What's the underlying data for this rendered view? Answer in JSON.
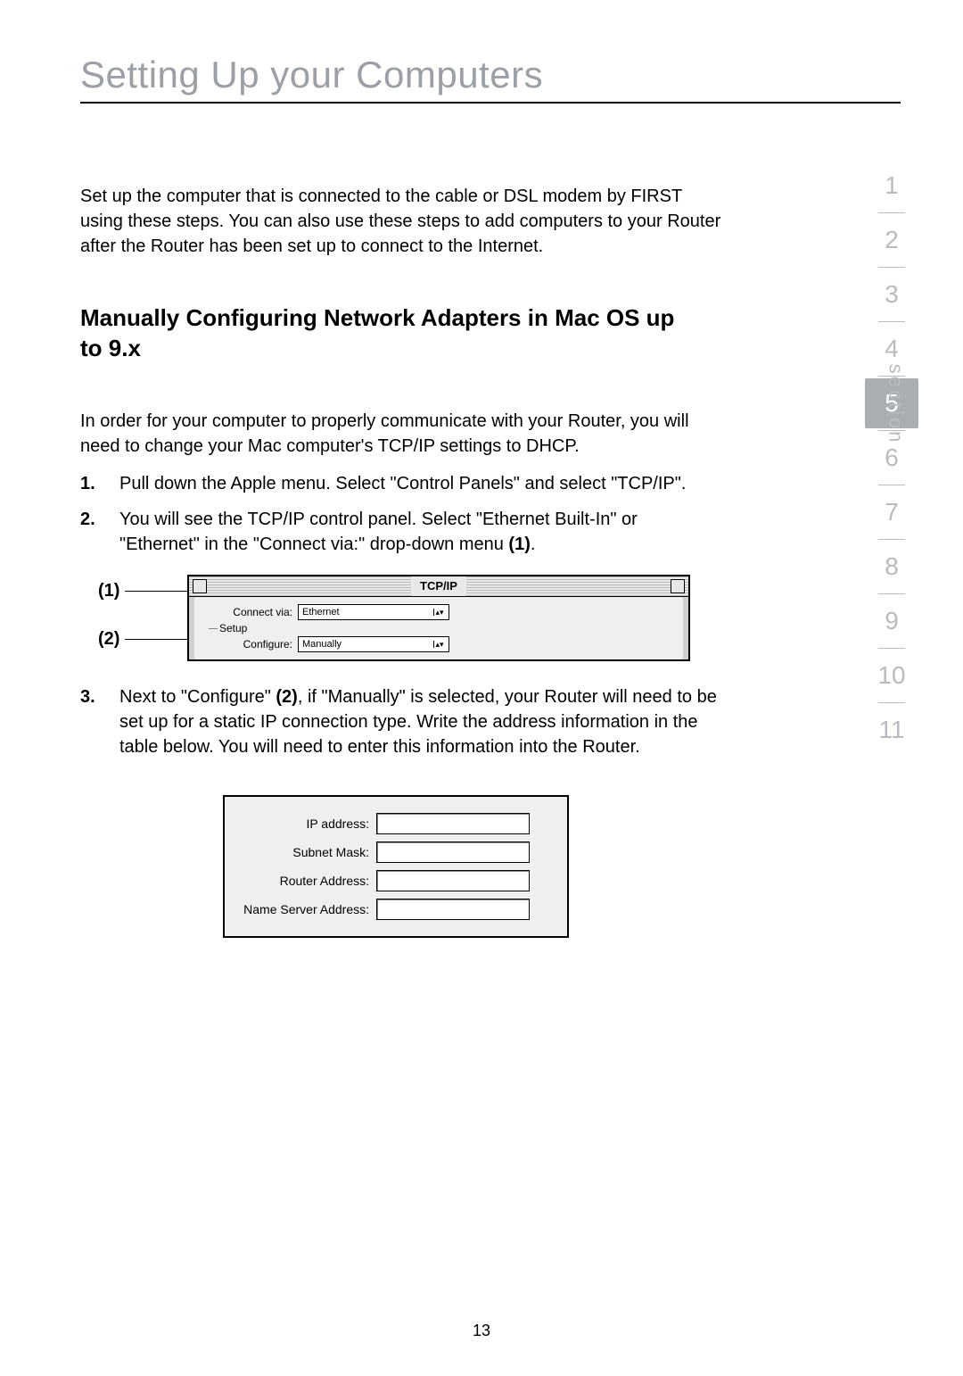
{
  "page": {
    "title": "Setting Up your Computers",
    "title_color": "#9aa0a6",
    "rule_color": "#000000",
    "number": "13"
  },
  "intro": "Set up the computer that is connected to the cable or DSL modem by FIRST using these steps. You can also use these steps to add computers to your Router after the Router has been set up to connect to the Internet.",
  "subheading": "Manually Configuring Network Adapters in Mac OS up to 9.x",
  "lead_in": "In order for your computer to properly communicate with your Router, you will need to change your Mac computer's TCP/IP settings to DHCP.",
  "steps": {
    "s1": {
      "num": "1.",
      "text": "Pull down the Apple menu. Select \"Control Panels\" and select \"TCP/IP\"."
    },
    "s2": {
      "num": "2.",
      "text_a": "You will see the TCP/IP control panel. Select \"Ethernet Built-In\" or \"Ethernet\" in the \"Connect via:\" drop-down menu ",
      "bold": "(1)",
      "text_b": "."
    },
    "s3": {
      "num": "3.",
      "text_a": "Next to \"Configure\" ",
      "bold": "(2)",
      "text_b": ", if \"Manually\" is selected, your Router will need to be set up for a static IP connection type. Write the address information in the table below. You will need to enter this information into the Router."
    }
  },
  "callouts": {
    "c1": "(1)",
    "c2": "(2)"
  },
  "tcpip_panel": {
    "title": "TCP/IP",
    "connect_label": "Connect via:",
    "connect_value": "Ethernet",
    "setup_label": "Setup",
    "configure_label": "Configure:",
    "configure_value": "Manually",
    "bg": "#efefef",
    "border": "#000000"
  },
  "ip_table": {
    "rows": [
      "IP address:",
      "Subnet Mask:",
      "Router Address:",
      "Name Server Address:"
    ]
  },
  "nav": {
    "label": "section",
    "items": [
      "1",
      "2",
      "3",
      "4",
      "5",
      "6",
      "7",
      "8",
      "9",
      "10",
      "11"
    ],
    "active_index": 4,
    "inactive_color": "#b8bcc0",
    "active_bg": "#a9aeb2",
    "active_fg": "#ffffff"
  }
}
